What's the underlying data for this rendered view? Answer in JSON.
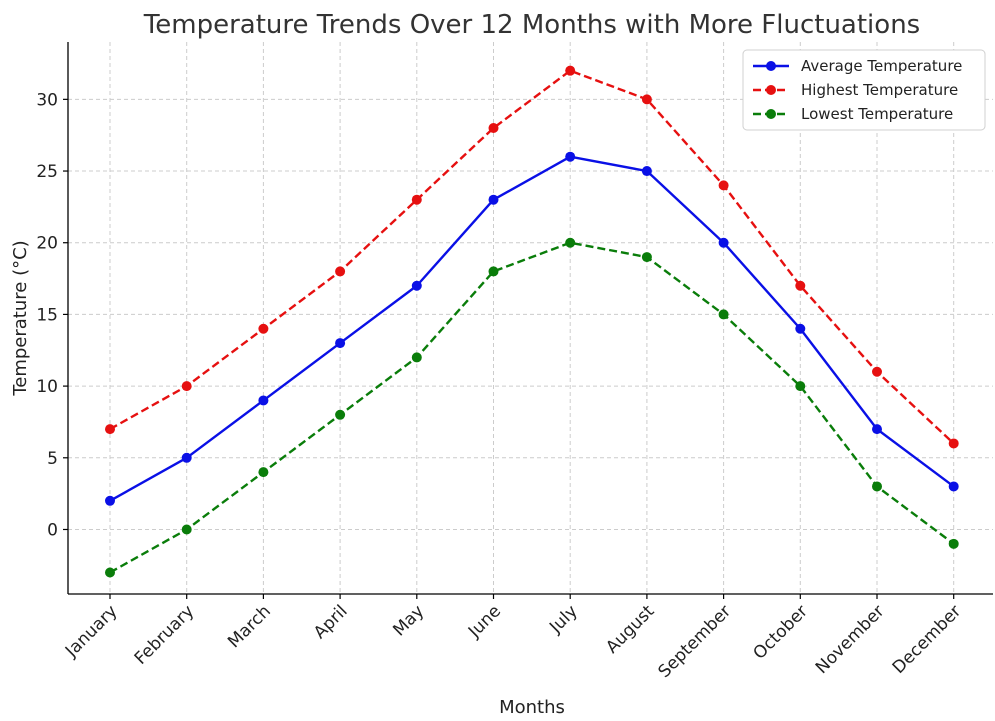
{
  "chart_data": {
    "type": "line",
    "title": "Temperature Trends Over 12 Months with More Fluctuations",
    "xlabel": "Months",
    "ylabel": "Temperature (°C)",
    "categories": [
      "January",
      "February",
      "March",
      "April",
      "May",
      "June",
      "July",
      "August",
      "September",
      "October",
      "November",
      "December"
    ],
    "ylim": [
      -4.5,
      34
    ],
    "yticks": [
      "0",
      "5",
      "10",
      "15",
      "20",
      "25",
      "30"
    ],
    "grid": true,
    "legend_position": "top-right",
    "series": [
      {
        "name": "Average Temperature",
        "color": "#0a10e6",
        "style": "solid",
        "values": [
          2,
          5,
          9,
          13,
          17,
          23,
          26,
          25,
          20,
          14,
          7,
          3
        ]
      },
      {
        "name": "Highest Temperature",
        "color": "#e61010",
        "style": "dashed",
        "values": [
          7,
          10,
          14,
          18,
          23,
          28,
          32,
          30,
          24,
          17,
          11,
          6
        ]
      },
      {
        "name": "Lowest Temperature",
        "color": "#0a7d0a",
        "style": "dashed",
        "values": [
          -3,
          0,
          4,
          8,
          12,
          18,
          20,
          19,
          15,
          10,
          3,
          -1
        ]
      }
    ]
  }
}
